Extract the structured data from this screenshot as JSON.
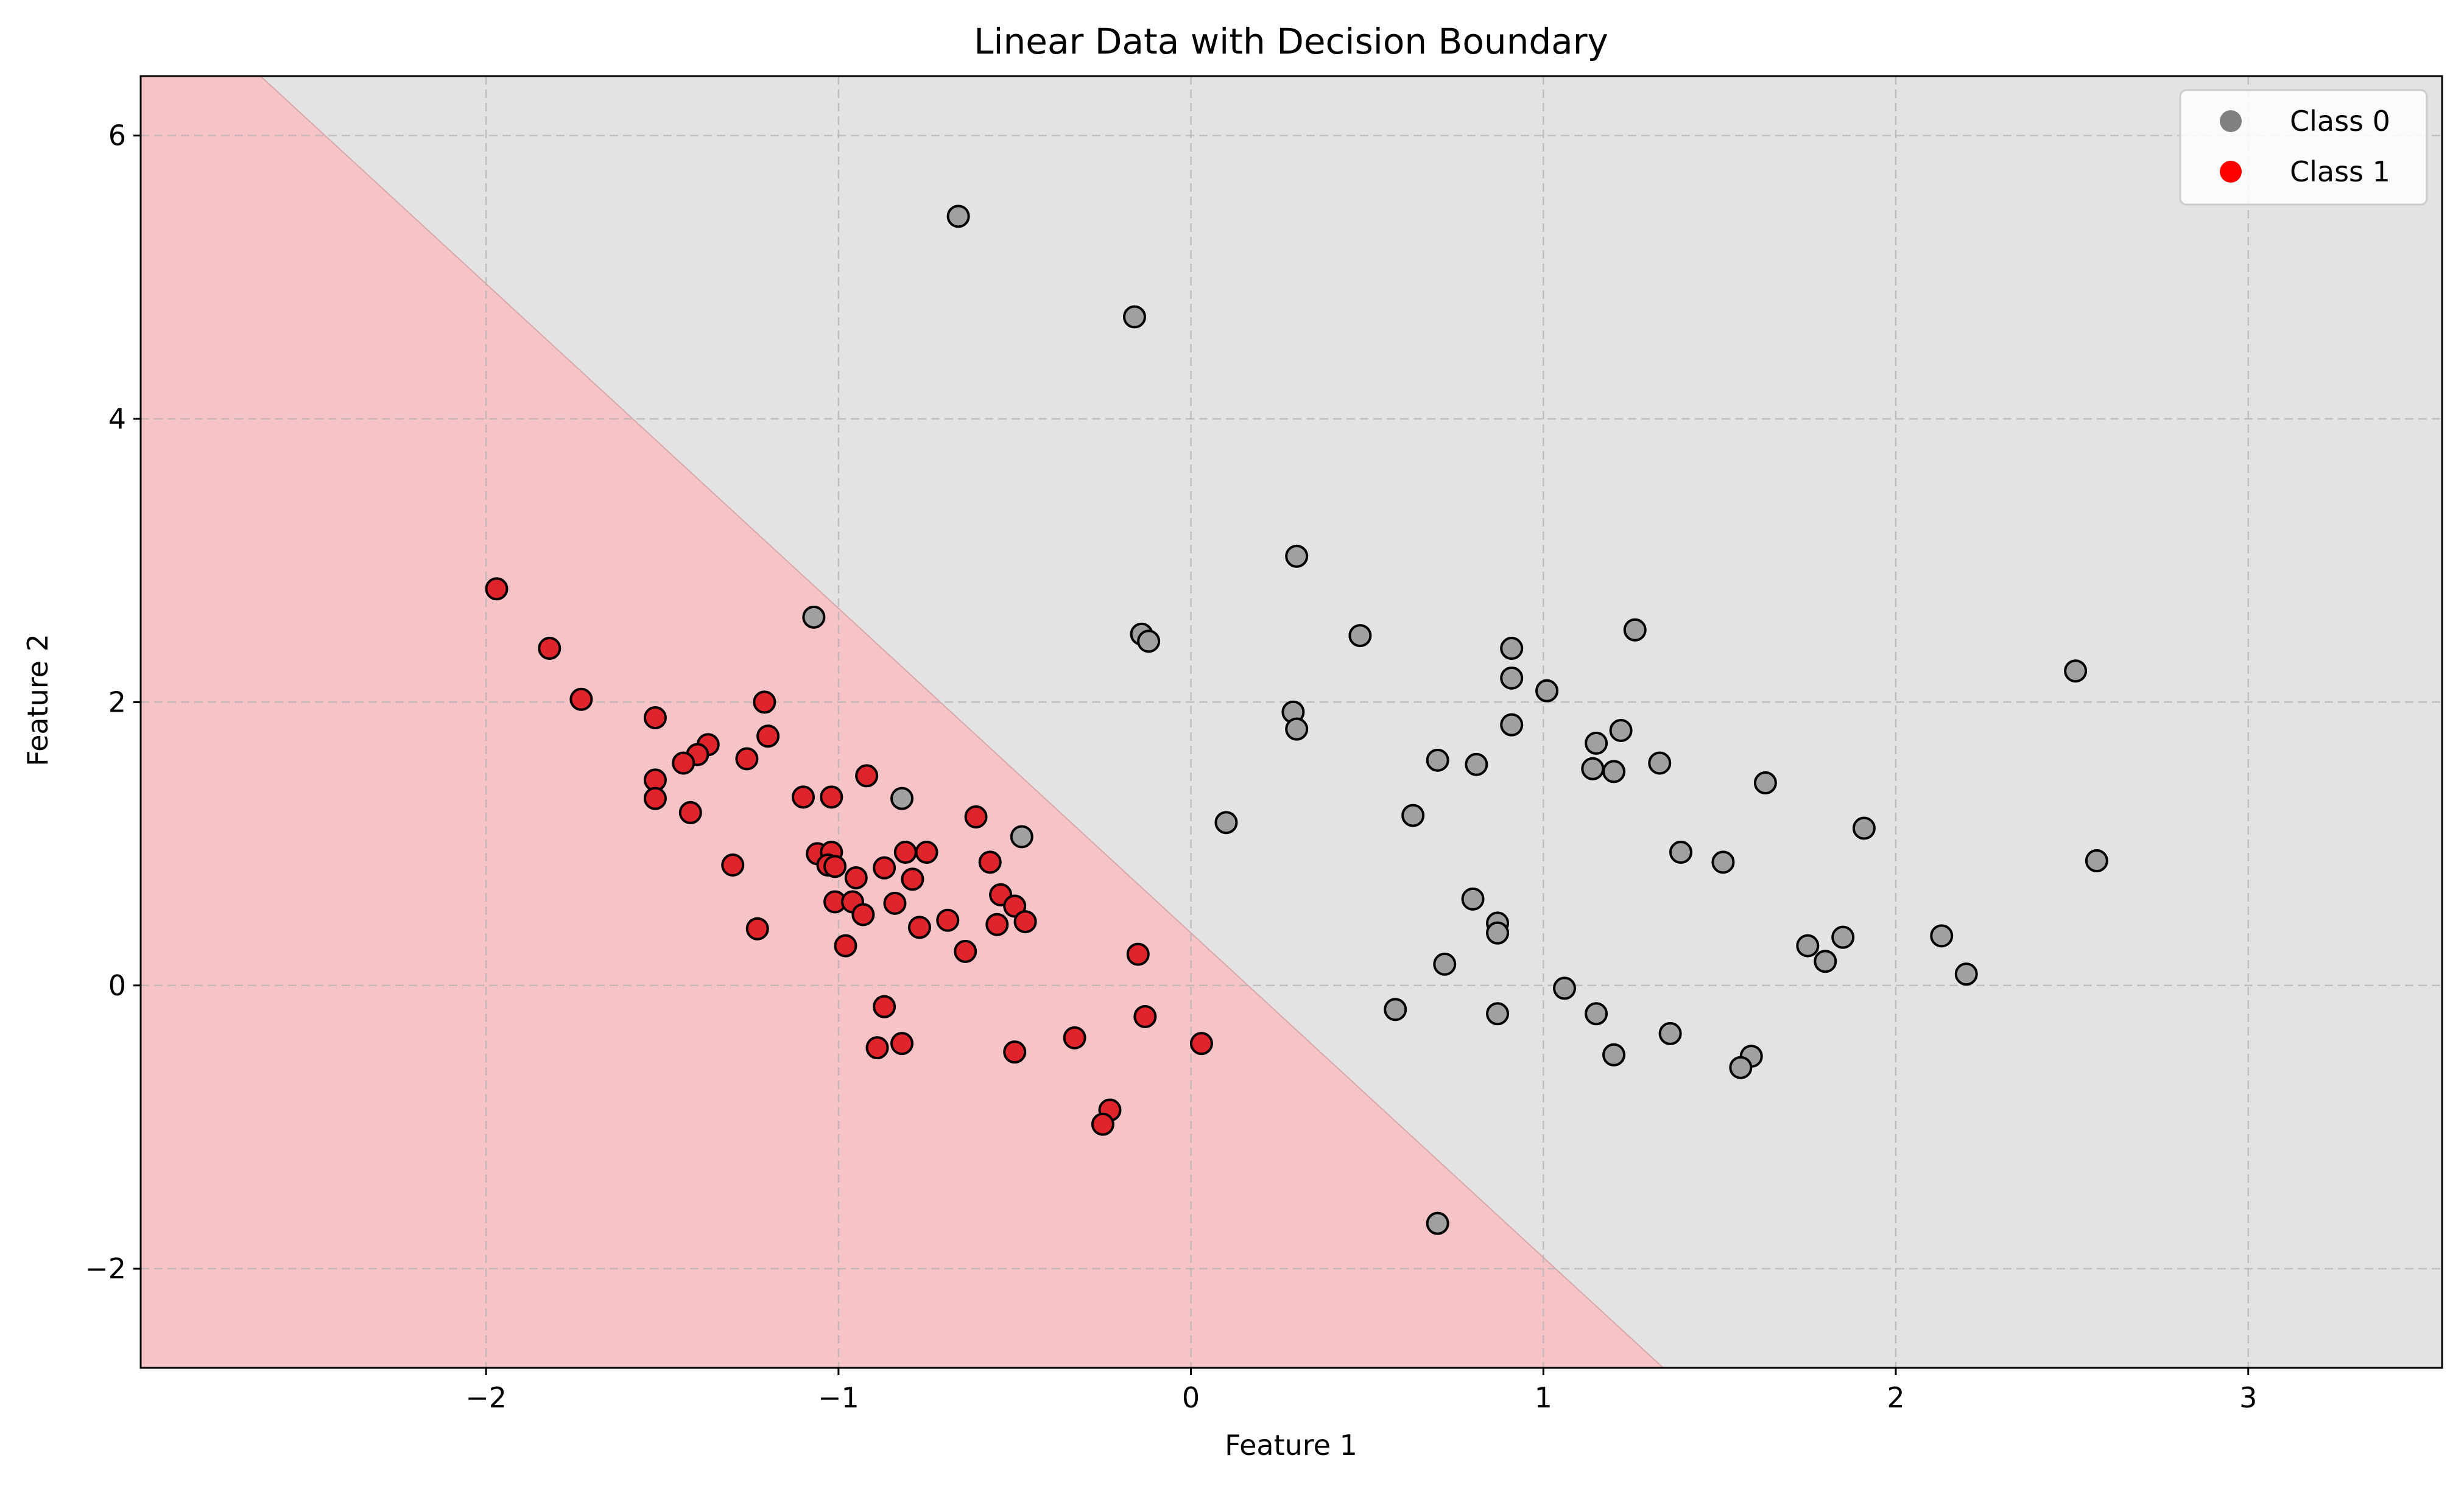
{
  "chart_data": {
    "type": "scatter",
    "title": "Linear Data with Decision Boundary",
    "xlabel": "Feature 1",
    "ylabel": "Feature 2",
    "xlim": [
      -2.98,
      3.55
    ],
    "ylim": [
      -2.7,
      6.42
    ],
    "xticks": [
      -2,
      -1,
      0,
      1,
      2,
      3
    ],
    "yticks": [
      -2,
      0,
      2,
      4,
      6
    ],
    "grid": true,
    "legend_position": "top-right",
    "colors": {
      "class0_point": "#a0a0a0",
      "class1_point": "#e0242c",
      "class0_legend": "#808080",
      "class1_legend": "#ff0000",
      "region_class0": "#e3e3e3",
      "region_class1": "#f6c3c6",
      "edge": "#000000"
    },
    "decision_boundary": {
      "points": [
        [
          -2.64,
          6.42
        ],
        [
          1.34,
          -2.7
        ]
      ]
    },
    "series": [
      {
        "name": "Class 0",
        "points": [
          [
            -0.66,
            5.43
          ],
          [
            -0.16,
            4.72
          ],
          [
            0.3,
            3.03
          ],
          [
            -1.07,
            2.6
          ],
          [
            -0.14,
            2.48
          ],
          [
            -0.12,
            2.43
          ],
          [
            0.48,
            2.47
          ],
          [
            0.91,
            2.38
          ],
          [
            0.91,
            2.17
          ],
          [
            1.01,
            2.08
          ],
          [
            1.26,
            2.51
          ],
          [
            2.51,
            2.22
          ],
          [
            0.29,
            1.93
          ],
          [
            0.3,
            1.81
          ],
          [
            0.91,
            1.84
          ],
          [
            1.15,
            1.71
          ],
          [
            1.22,
            1.8
          ],
          [
            0.7,
            1.59
          ],
          [
            0.81,
            1.56
          ],
          [
            1.14,
            1.53
          ],
          [
            1.2,
            1.51
          ],
          [
            1.33,
            1.57
          ],
          [
            1.63,
            1.43
          ],
          [
            -0.82,
            1.32
          ],
          [
            0.1,
            1.15
          ],
          [
            0.63,
            1.2
          ],
          [
            -0.48,
            1.05
          ],
          [
            1.91,
            1.11
          ],
          [
            1.39,
            0.94
          ],
          [
            1.51,
            0.87
          ],
          [
            2.57,
            0.88
          ],
          [
            0.8,
            0.61
          ],
          [
            0.87,
            0.44
          ],
          [
            0.87,
            0.37
          ],
          [
            0.72,
            0.15
          ],
          [
            1.75,
            0.28
          ],
          [
            1.85,
            0.34
          ],
          [
            1.8,
            0.17
          ],
          [
            2.13,
            0.35
          ],
          [
            2.2,
            0.08
          ],
          [
            1.06,
            -0.02
          ],
          [
            0.58,
            -0.17
          ],
          [
            0.87,
            -0.2
          ],
          [
            1.15,
            -0.2
          ],
          [
            1.36,
            -0.34
          ],
          [
            1.2,
            -0.49
          ],
          [
            1.59,
            -0.5
          ],
          [
            1.56,
            -0.58
          ],
          [
            0.7,
            -1.68
          ]
        ]
      },
      {
        "name": "Class 1",
        "points": [
          [
            -1.97,
            2.8
          ],
          [
            -1.82,
            2.38
          ],
          [
            -1.73,
            2.02
          ],
          [
            -1.21,
            2.0
          ],
          [
            -1.52,
            1.89
          ],
          [
            -1.2,
            1.76
          ],
          [
            -1.37,
            1.7
          ],
          [
            -1.4,
            1.63
          ],
          [
            -1.44,
            1.57
          ],
          [
            -1.26,
            1.6
          ],
          [
            -1.52,
            1.45
          ],
          [
            -1.52,
            1.32
          ],
          [
            -0.92,
            1.48
          ],
          [
            -1.1,
            1.33
          ],
          [
            -1.02,
            1.33
          ],
          [
            -1.42,
            1.22
          ],
          [
            -0.61,
            1.19
          ],
          [
            -1.06,
            0.93
          ],
          [
            -1.02,
            0.94
          ],
          [
            -1.03,
            0.85
          ],
          [
            -1.01,
            0.84
          ],
          [
            -0.95,
            0.76
          ],
          [
            -0.81,
            0.94
          ],
          [
            -0.75,
            0.94
          ],
          [
            -0.57,
            0.87
          ],
          [
            -0.87,
            0.83
          ],
          [
            -0.79,
            0.75
          ],
          [
            -1.3,
            0.85
          ],
          [
            -0.54,
            0.64
          ],
          [
            -1.01,
            0.59
          ],
          [
            -0.96,
            0.59
          ],
          [
            -0.93,
            0.5
          ],
          [
            -0.84,
            0.58
          ],
          [
            -0.69,
            0.46
          ],
          [
            -0.5,
            0.56
          ],
          [
            -0.55,
            0.43
          ],
          [
            -0.47,
            0.45
          ],
          [
            -0.77,
            0.41
          ],
          [
            -1.23,
            0.4
          ],
          [
            -0.98,
            0.28
          ],
          [
            -0.64,
            0.24
          ],
          [
            -0.15,
            0.22
          ],
          [
            -0.87,
            -0.15
          ],
          [
            -0.13,
            -0.22
          ],
          [
            -0.82,
            -0.41
          ],
          [
            -0.89,
            -0.44
          ],
          [
            0.03,
            -0.41
          ],
          [
            -0.5,
            -0.47
          ],
          [
            -0.33,
            -0.37
          ],
          [
            -0.23,
            -0.88
          ],
          [
            -0.25,
            -0.98
          ]
        ]
      }
    ]
  }
}
